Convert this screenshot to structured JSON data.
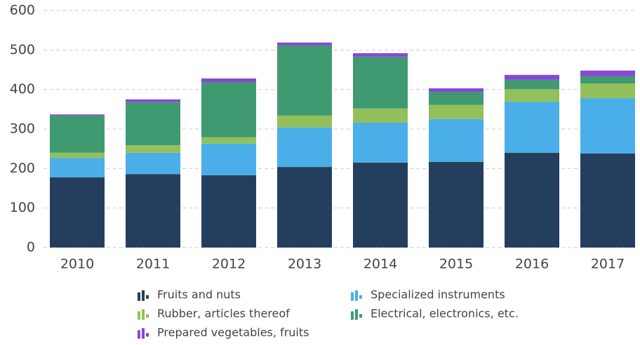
{
  "chart_data": {
    "type": "stacked_bar",
    "categories": [
      "2010",
      "2011",
      "2012",
      "2013",
      "2014",
      "2015",
      "2016",
      "2017"
    ],
    "series": [
      {
        "name": "Fruits and nuts",
        "color": "#243f5e",
        "values": [
          178,
          186,
          183,
          204,
          215,
          217,
          240,
          238
        ]
      },
      {
        "name": "Specialized instruments",
        "color": "#4aaee8",
        "values": [
          49,
          54,
          80,
          100,
          101,
          108,
          129,
          140
        ]
      },
      {
        "name": "Rubber, articles thereof",
        "color": "#93c05a",
        "values": [
          13,
          19,
          16,
          30,
          36,
          36,
          32,
          37
        ]
      },
      {
        "name": "Electrical, electronics, etc.",
        "color": "#3f9a72",
        "values": [
          94,
          109,
          140,
          178,
          131,
          33,
          24,
          19
        ]
      },
      {
        "name": "Prepared vegetables, fruits",
        "color": "#8a46d6",
        "values": [
          3,
          7,
          9,
          7,
          9,
          9,
          12,
          14
        ]
      }
    ],
    "ylim": [
      0,
      600
    ],
    "yticks": [
      0,
      100,
      200,
      300,
      400,
      500,
      600
    ],
    "grid": true
  }
}
